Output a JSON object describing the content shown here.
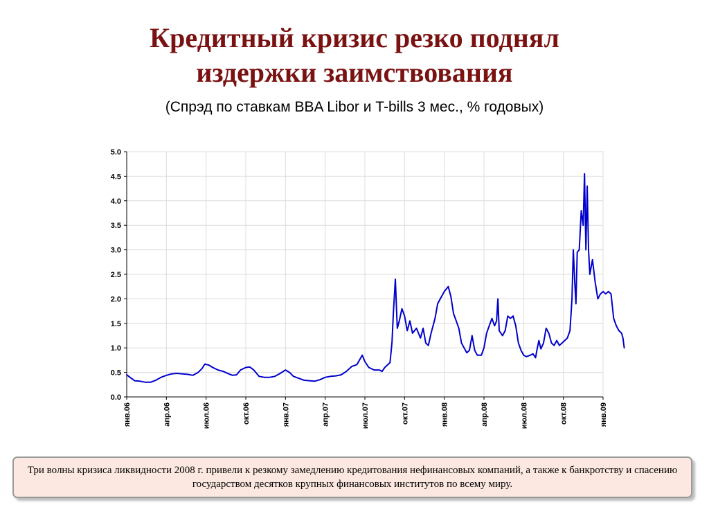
{
  "title": {
    "line1": "Кредитный кризис резко поднял",
    "line2": "издержки заимствования"
  },
  "subtitle": "(Спрэд по ставкам BBA Libor и T-bills 3 мес., % годовых)",
  "caption": "Три волны кризиса ликвидности 2008 г. привели к резкому замедлению кредитования нефинансовых компаний, а также к банкротству и спасению государством десятков крупных финансовых институтов по всему миру.",
  "colors": {
    "title": "#7a1212",
    "line": "#0000cc",
    "caption_bg": "#fce8e0"
  },
  "chart_data": {
    "type": "line",
    "title": "",
    "xlabel": "",
    "ylabel": "",
    "ylim": [
      0,
      5
    ],
    "yticks": [
      "0.0",
      "0.5",
      "1.0",
      "1.5",
      "2.0",
      "2.5",
      "3.0",
      "3.5",
      "4.0",
      "4.5",
      "5.0"
    ],
    "xlim": [
      0,
      36
    ],
    "x_unit": "months since янв.06",
    "xtick_labels": [
      "янв.06",
      "апр.06",
      "июл.06",
      "окт.06",
      "янв.07",
      "апр.07",
      "июл.07",
      "окт.07",
      "янв.08",
      "апр.08",
      "июл.08",
      "окт.08",
      "янв.09"
    ],
    "grid": true,
    "legend": "none",
    "series": [
      {
        "points": [
          [
            0.0,
            0.45
          ],
          [
            0.3,
            0.39
          ],
          [
            0.6,
            0.33
          ],
          [
            1.0,
            0.32
          ],
          [
            1.4,
            0.3
          ],
          [
            1.8,
            0.3
          ],
          [
            2.2,
            0.34
          ],
          [
            2.6,
            0.4
          ],
          [
            3.0,
            0.44
          ],
          [
            3.4,
            0.47
          ],
          [
            3.8,
            0.48
          ],
          [
            4.2,
            0.47
          ],
          [
            4.6,
            0.46
          ],
          [
            5.0,
            0.44
          ],
          [
            5.4,
            0.5
          ],
          [
            5.7,
            0.58
          ],
          [
            5.9,
            0.67
          ],
          [
            6.2,
            0.65
          ],
          [
            6.5,
            0.6
          ],
          [
            6.9,
            0.55
          ],
          [
            7.3,
            0.52
          ],
          [
            7.7,
            0.47
          ],
          [
            8.0,
            0.44
          ],
          [
            8.3,
            0.45
          ],
          [
            8.6,
            0.55
          ],
          [
            9.0,
            0.6
          ],
          [
            9.3,
            0.61
          ],
          [
            9.6,
            0.55
          ],
          [
            10.0,
            0.42
          ],
          [
            10.4,
            0.4
          ],
          [
            10.8,
            0.4
          ],
          [
            11.2,
            0.42
          ],
          [
            11.6,
            0.48
          ],
          [
            12.0,
            0.55
          ],
          [
            12.3,
            0.5
          ],
          [
            12.6,
            0.42
          ],
          [
            13.0,
            0.38
          ],
          [
            13.4,
            0.34
          ],
          [
            13.8,
            0.33
          ],
          [
            14.2,
            0.32
          ],
          [
            14.6,
            0.35
          ],
          [
            15.0,
            0.4
          ],
          [
            15.4,
            0.42
          ],
          [
            15.8,
            0.43
          ],
          [
            16.2,
            0.45
          ],
          [
            16.6,
            0.52
          ],
          [
            17.0,
            0.62
          ],
          [
            17.4,
            0.66
          ],
          [
            17.8,
            0.85
          ],
          [
            18.0,
            0.72
          ],
          [
            18.3,
            0.6
          ],
          [
            18.7,
            0.55
          ],
          [
            19.1,
            0.55
          ],
          [
            19.3,
            0.52
          ],
          [
            19.5,
            0.6
          ],
          [
            19.7,
            0.65
          ],
          [
            19.9,
            0.7
          ],
          [
            20.05,
            1.12
          ],
          [
            20.15,
            1.7
          ],
          [
            20.3,
            2.4
          ],
          [
            20.45,
            1.4
          ],
          [
            20.6,
            1.55
          ],
          [
            20.8,
            1.8
          ],
          [
            21.0,
            1.65
          ],
          [
            21.2,
            1.35
          ],
          [
            21.4,
            1.55
          ],
          [
            21.6,
            1.3
          ],
          [
            21.9,
            1.4
          ],
          [
            22.2,
            1.2
          ],
          [
            22.4,
            1.4
          ],
          [
            22.6,
            1.1
          ],
          [
            22.8,
            1.05
          ],
          [
            23.0,
            1.3
          ],
          [
            23.3,
            1.6
          ],
          [
            23.5,
            1.9
          ],
          [
            23.7,
            2.0
          ],
          [
            24.0,
            2.15
          ],
          [
            24.3,
            2.25
          ],
          [
            24.5,
            2.05
          ],
          [
            24.7,
            1.7
          ],
          [
            24.9,
            1.55
          ],
          [
            25.1,
            1.4
          ],
          [
            25.3,
            1.1
          ],
          [
            25.5,
            1.0
          ],
          [
            25.7,
            0.9
          ],
          [
            25.9,
            0.95
          ],
          [
            26.1,
            1.25
          ],
          [
            26.3,
            0.95
          ],
          [
            26.5,
            0.85
          ],
          [
            26.8,
            0.85
          ],
          [
            27.0,
            1.0
          ],
          [
            27.2,
            1.3
          ],
          [
            27.4,
            1.45
          ],
          [
            27.6,
            1.6
          ],
          [
            27.8,
            1.45
          ],
          [
            27.95,
            1.55
          ],
          [
            28.05,
            2.0
          ],
          [
            28.15,
            1.35
          ],
          [
            28.4,
            1.25
          ],
          [
            28.6,
            1.35
          ],
          [
            28.8,
            1.65
          ],
          [
            29.0,
            1.6
          ],
          [
            29.2,
            1.65
          ],
          [
            29.4,
            1.45
          ],
          [
            29.6,
            1.1
          ],
          [
            29.8,
            0.95
          ],
          [
            30.0,
            0.85
          ],
          [
            30.2,
            0.82
          ],
          [
            30.5,
            0.85
          ],
          [
            30.7,
            0.88
          ],
          [
            30.9,
            0.8
          ],
          [
            31.0,
            0.95
          ],
          [
            31.15,
            1.15
          ],
          [
            31.3,
            0.98
          ],
          [
            31.5,
            1.1
          ],
          [
            31.7,
            1.4
          ],
          [
            31.9,
            1.3
          ],
          [
            32.1,
            1.1
          ],
          [
            32.3,
            1.05
          ],
          [
            32.5,
            1.15
          ],
          [
            32.7,
            1.05
          ],
          [
            32.9,
            1.1
          ],
          [
            33.1,
            1.15
          ],
          [
            33.3,
            1.2
          ],
          [
            33.5,
            1.35
          ],
          [
            33.65,
            2.0
          ],
          [
            33.75,
            3.0
          ],
          [
            33.85,
            2.4
          ],
          [
            33.95,
            1.9
          ],
          [
            34.05,
            2.95
          ],
          [
            34.2,
            3.0
          ],
          [
            34.35,
            3.8
          ],
          [
            34.5,
            3.5
          ],
          [
            34.6,
            4.55
          ],
          [
            34.7,
            3.0
          ],
          [
            34.8,
            4.3
          ],
          [
            34.9,
            3.0
          ],
          [
            35.0,
            2.5
          ],
          [
            35.2,
            2.8
          ],
          [
            35.4,
            2.35
          ],
          [
            35.6,
            2.0
          ],
          [
            35.8,
            2.1
          ],
          [
            36.0,
            2.15
          ],
          [
            36.2,
            2.1
          ],
          [
            36.4,
            2.15
          ],
          [
            36.6,
            2.1
          ],
          [
            36.8,
            1.6
          ],
          [
            37.0,
            1.45
          ],
          [
            37.2,
            1.35
          ],
          [
            37.4,
            1.3
          ],
          [
            37.5,
            1.2
          ],
          [
            37.6,
            1.0
          ]
        ]
      }
    ]
  }
}
